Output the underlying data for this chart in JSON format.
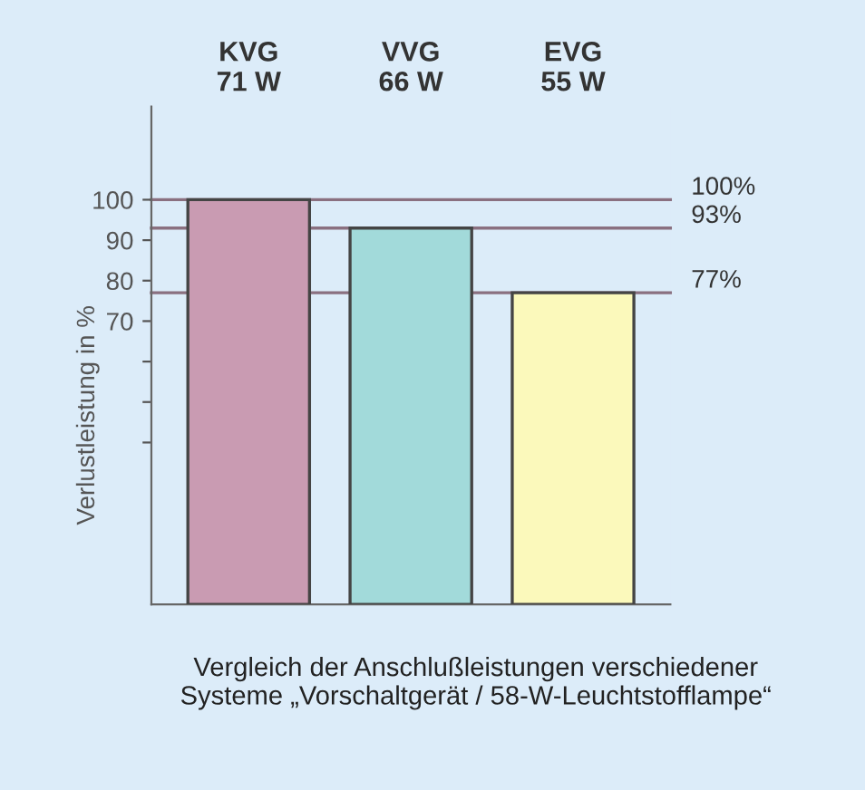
{
  "chart_data": {
    "type": "bar",
    "categories": [
      "KVG\n71 W",
      "VVG\n66 W",
      "EVG\n55 W"
    ],
    "values": [
      100,
      93,
      77
    ],
    "colors": [
      "#c99bb2",
      "#a2dada",
      "#fbf9bb"
    ],
    "ylabel": "Verlustleistung in %",
    "ylim": [
      0,
      123
    ],
    "yticks": [
      {
        "value": 40,
        "label": null
      },
      {
        "value": 50,
        "label": null
      },
      {
        "value": 60,
        "label": null
      },
      70,
      80,
      90,
      100
    ],
    "ref_lines": [
      {
        "axis": "y",
        "value": 100,
        "label": "100%",
        "color": "#8a7080"
      },
      {
        "axis": "y",
        "value": 93,
        "label": "93%",
        "color": "#8a7080"
      },
      {
        "axis": "y",
        "value": 77,
        "label": "77%",
        "color": "#8a7080"
      }
    ],
    "annotations": [
      "Vergleich der Anschlußleistungen verschiedener\nSysteme „Vorschaltgerät / 58-W-Leuchtstofflampe“"
    ],
    "grid": false,
    "legend": false
  }
}
